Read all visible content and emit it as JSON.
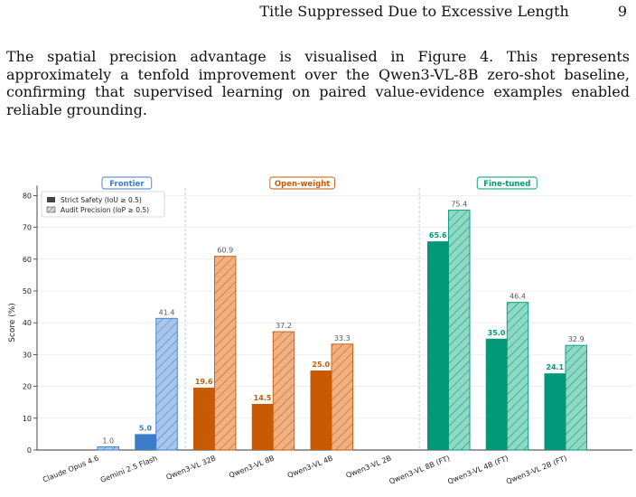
{
  "header": {
    "running_title": "Title Suppressed Due to Excessive Length",
    "page_number": "9"
  },
  "paragraph": "The spatial precision advantage is visualised in Figure 4. This represents approximately a tenfold improvement over the Qwen3-VL-8B zero-shot baseline, confirming that supervised learning on paired value-evidence examples enabled reliable grounding.",
  "chart_data": {
    "type": "bar",
    "ylabel": "Score (%)",
    "ylim": [
      0,
      82
    ],
    "yticks": [
      0,
      10,
      20,
      30,
      40,
      50,
      60,
      70,
      80
    ],
    "legend": {
      "placement": "top-left",
      "entries": [
        "Strict Safety  (IoU ≥ 0.5)",
        "Audit Precision  (IoP ≥ 0.5)"
      ]
    },
    "groups": [
      {
        "label": "Frontier",
        "color": "#3d7cc9",
        "light": "#a9c5ec",
        "models": [
          0,
          1
        ]
      },
      {
        "label": "Open-weight",
        "color": "#c95a04",
        "light": "#efb184",
        "models": [
          2,
          3,
          4,
          5
        ]
      },
      {
        "label": "Fine-tuned",
        "color": "#009878",
        "light": "#8fd8c4",
        "models": [
          6,
          7,
          8
        ]
      }
    ],
    "categories": [
      "Claude Opus 4.6",
      "Gemini 2.5 Flash",
      "Qwen3-VL 32B",
      "Qwen3-VL 8B",
      "Qwen3-VL 4B",
      "Qwen3-VL 2B",
      "Qwen3-VL 8B (FT)",
      "Qwen3-VL 4B (FT)",
      "Qwen3-VL 2B (FT)"
    ],
    "series": [
      {
        "name": "Strict Safety  (IoU ≥ 0.5)",
        "values": [
          0.0,
          5.0,
          19.6,
          14.5,
          25.0,
          0.0,
          65.6,
          35.0,
          24.1
        ],
        "labels": [
          "",
          "5.0",
          "19.6",
          "14.5",
          "25.0",
          "",
          "65.6",
          "35.0",
          "24.1"
        ]
      },
      {
        "name": "Audit Precision  (IoP ≥ 0.5)",
        "values": [
          1.0,
          41.4,
          60.9,
          37.2,
          33.3,
          0.0,
          75.4,
          46.4,
          32.9
        ],
        "labels": [
          "1.0",
          "41.4",
          "60.9",
          "37.2",
          "33.3",
          "",
          "75.4",
          "46.4",
          "32.9"
        ]
      }
    ],
    "grid": true
  }
}
